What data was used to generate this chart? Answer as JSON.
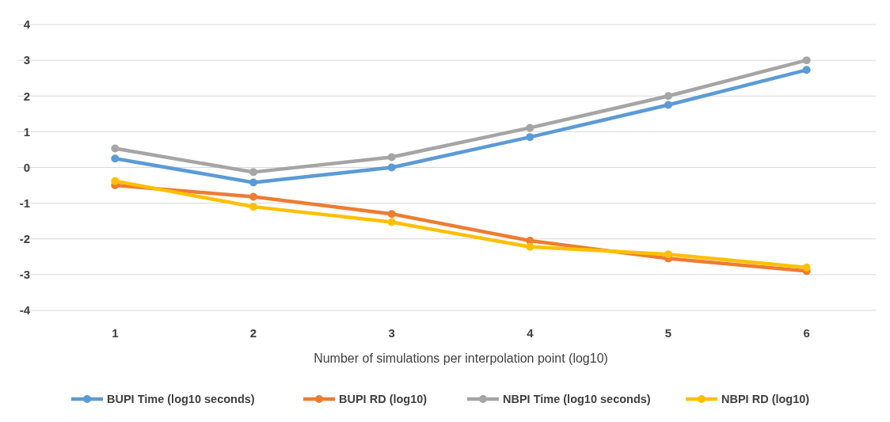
{
  "chart_data": {
    "type": "line",
    "xlabel": "Number of simulations per interpolation point (log10)",
    "categories": [
      "1",
      "2",
      "3",
      "4",
      "5",
      "6"
    ],
    "series": [
      {
        "name": "BUPI Time (log10 seconds)",
        "color": "#5b9bd5",
        "values": [
          0.25,
          -0.42,
          0.0,
          0.85,
          1.75,
          2.73
        ]
      },
      {
        "name": "BUPI RD (log10)",
        "color": "#ed7d31",
        "values": [
          -0.5,
          -0.82,
          -1.3,
          -2.05,
          -2.55,
          -2.9
        ]
      },
      {
        "name": "NBPI Time (log10 seconds)",
        "color": "#a5a5a5",
        "values": [
          0.53,
          -0.13,
          0.29,
          1.11,
          2.0,
          3.0
        ]
      },
      {
        "name": "NBPI RD (log10)",
        "color": "#ffc000",
        "values": [
          -0.38,
          -1.1,
          -1.53,
          -2.22,
          -2.43,
          -2.8
        ]
      }
    ],
    "ylim": [
      -4,
      4
    ],
    "yticks": [
      -4,
      -3,
      -2,
      -1,
      0,
      1,
      2,
      3,
      4
    ],
    "grid": "y",
    "legend": "bottom",
    "marker": "circle",
    "line_style": "solid"
  }
}
